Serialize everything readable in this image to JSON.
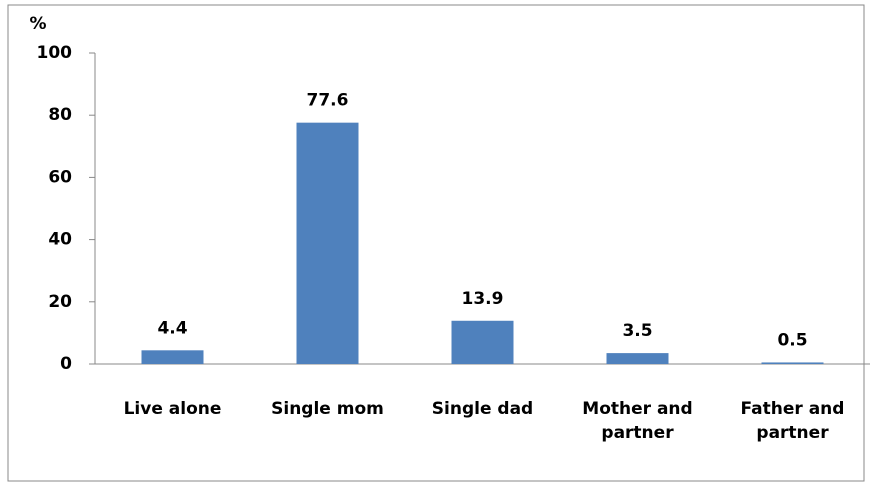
{
  "chart_data": {
    "type": "bar",
    "y_axis_label": "%",
    "categories": [
      "Live alone",
      "Single mom",
      "Single dad",
      "Mother and partner",
      "Father and partner"
    ],
    "values": [
      4.4,
      77.6,
      13.9,
      3.5,
      0.5
    ],
    "color": "#4f81bd",
    "ylim": [
      0,
      100
    ],
    "yticks": [
      0,
      20,
      40,
      60,
      80,
      100
    ],
    "grid": false
  }
}
